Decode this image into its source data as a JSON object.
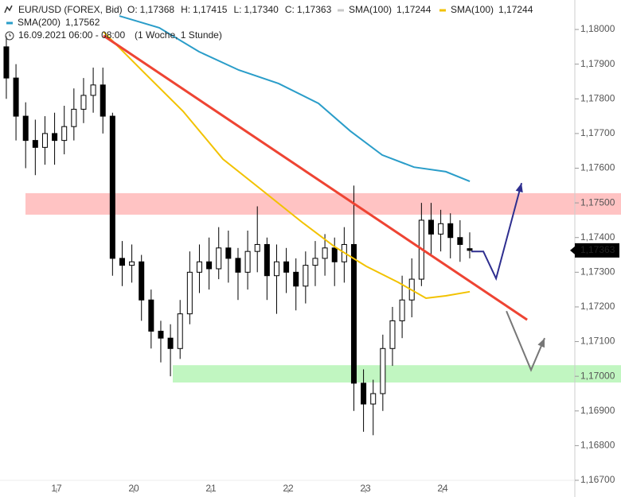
{
  "chart_data": {
    "type": "candlestick",
    "title": "EUR/USD (FOREX, Bid)",
    "ohlc_header": [
      {
        "key": "O:",
        "label": "1,17368"
      },
      {
        "key": "H:",
        "label": "1,17415"
      },
      {
        "key": "L:",
        "label": "1,17340"
      },
      {
        "key": "C:",
        "label": "1,17363"
      }
    ],
    "legend": [
      {
        "name": "SMA(100)",
        "color": "#c8c8c8",
        "label": "1,17244"
      },
      {
        "name": "SMA(100)",
        "color": "#f2c200",
        "label": "1,17244"
      },
      {
        "name": "SMA(200)",
        "color": "#2a9dc9",
        "label": "1,17562"
      }
    ],
    "date_range": "16.09.2021 06:00 - 08:00",
    "timeframe": "(1 Woche, 1 Stunde)",
    "last_price_label": "1,17363",
    "up_color": "#ffffff",
    "down_color": "#000000",
    "x": [
      -0.65,
      -0.525,
      -0.4,
      -0.275,
      -0.15,
      -0.025,
      0.1,
      0.225,
      0.35,
      0.475,
      0.6,
      0.725,
      0.85,
      0.975,
      1.1,
      1.225,
      1.35,
      1.475,
      1.6,
      1.725,
      1.85,
      1.975,
      2.1,
      2.225,
      2.35,
      2.475,
      2.6,
      2.725,
      2.85,
      2.975,
      3.1,
      3.225,
      3.35,
      3.475,
      3.6,
      3.725,
      3.85,
      3.975,
      4.1,
      4.225,
      4.35,
      4.475,
      4.6,
      4.725,
      4.85,
      4.975,
      5.1,
      5.225,
      5.35
    ],
    "open": [
      1.1795,
      1.1786,
      1.1775,
      1.1768,
      1.1766,
      1.177,
      1.1768,
      1.1772,
      1.1777,
      1.1781,
      1.1784,
      1.1775,
      1.1734,
      1.1732,
      1.1733,
      1.1722,
      1.1713,
      1.1711,
      1.1708,
      1.1718,
      1.173,
      1.1733,
      1.1731,
      1.1737,
      1.1734,
      1.173,
      1.1736,
      1.1738,
      1.1729,
      1.1733,
      1.173,
      1.1726,
      1.1732,
      1.1734,
      1.1737,
      1.1733,
      1.1738,
      1.1698,
      1.1692,
      1.1695,
      1.1708,
      1.1716,
      1.1722,
      1.1728,
      1.1745,
      1.1741,
      1.1744,
      1.174,
      1.17368
    ],
    "high": [
      1.1798,
      1.179,
      1.1779,
      1.1774,
      1.1775,
      1.1776,
      1.1778,
      1.1783,
      1.1786,
      1.1789,
      1.1789,
      1.1776,
      1.1739,
      1.1738,
      1.1735,
      1.1725,
      1.1716,
      1.1715,
      1.1722,
      1.1736,
      1.1738,
      1.174,
      1.1743,
      1.1742,
      1.1737,
      1.1742,
      1.1749,
      1.174,
      1.1738,
      1.1737,
      1.1734,
      1.1736,
      1.1739,
      1.1741,
      1.174,
      1.1743,
      1.1755,
      1.1702,
      1.1699,
      1.1712,
      1.172,
      1.1729,
      1.1734,
      1.175,
      1.175,
      1.1748,
      1.1747,
      1.1745,
      1.17415
    ],
    "low": [
      1.178,
      1.1768,
      1.176,
      1.1758,
      1.1761,
      1.1761,
      1.1764,
      1.1768,
      1.1773,
      1.1776,
      1.177,
      1.1729,
      1.1726,
      1.1727,
      1.1716,
      1.1708,
      1.1704,
      1.17,
      1.1705,
      1.1715,
      1.1724,
      1.1725,
      1.1728,
      1.1727,
      1.1722,
      1.1725,
      1.173,
      1.1722,
      1.1718,
      1.1724,
      1.1719,
      1.1721,
      1.1726,
      1.1729,
      1.1726,
      1.1727,
      1.169,
      1.1684,
      1.1683,
      1.169,
      1.1703,
      1.1711,
      1.1717,
      1.1726,
      1.1735,
      1.1736,
      1.1734,
      1.1733,
      1.1734
    ],
    "close": [
      1.1786,
      1.1775,
      1.1768,
      1.1766,
      1.177,
      1.1768,
      1.1772,
      1.1777,
      1.1781,
      1.1784,
      1.1775,
      1.1734,
      1.1732,
      1.1733,
      1.1722,
      1.1713,
      1.1711,
      1.1708,
      1.1718,
      1.173,
      1.1733,
      1.1731,
      1.1737,
      1.1734,
      1.173,
      1.1736,
      1.1738,
      1.1729,
      1.1733,
      1.173,
      1.1726,
      1.1732,
      1.1734,
      1.1737,
      1.1733,
      1.1738,
      1.1698,
      1.1692,
      1.1695,
      1.1708,
      1.1716,
      1.1722,
      1.1728,
      1.1745,
      1.1741,
      1.1744,
      1.174,
      1.1738,
      1.17363
    ],
    "lines": [
      {
        "color": "#2a9dc9",
        "x": [
          0.814,
          1.33,
          1.845,
          2.361,
          2.876,
          3.392,
          3.804,
          4.216,
          4.629,
          5.041,
          5.351
        ],
        "values": [
          1.18039,
          1.18005,
          1.17936,
          1.17883,
          1.17844,
          1.17787,
          1.17707,
          1.17638,
          1.17603,
          1.1759,
          1.17562
        ]
      },
      {
        "color": "#f2c200",
        "x": [
          0.608,
          1.124,
          1.639,
          2.155,
          2.67,
          3.186,
          3.598,
          4.01,
          4.423,
          4.784,
          5.041,
          5.351
        ],
        "values": [
          1.17993,
          1.17878,
          1.17764,
          1.17626,
          1.17535,
          1.17443,
          1.17374,
          1.17317,
          1.17271,
          1.17225,
          1.17232,
          1.17244
        ]
      },
      {
        "color": "#ee4433",
        "x": [
          0.608,
          6.093
        ],
        "values": [
          1.17982,
          1.17163
        ]
      },
      {
        "color": "#2e2e8f",
        "x": [
          5.371,
          5.526,
          5.691,
          6.021
        ],
        "values": [
          1.1736,
          1.1736,
          1.17282,
          1.17557
        ]
      },
      {
        "color": "#777777",
        "x": [
          5.825,
          6.144,
          6.32
        ],
        "values": [
          1.17188,
          1.17018,
          1.1711
        ]
      }
    ],
    "zones": [
      {
        "color": "#ffb8b8",
        "x_from": -0.402,
        "bounds": [
          1.17466,
          1.17528
        ]
      },
      {
        "color": "#b6f5b6",
        "x_from": 1.505,
        "bounds": [
          1.16982,
          1.17032
        ]
      }
    ],
    "xlim": [
      -0.732,
      6.711
    ],
    "xticks": [
      {
        "value": 0,
        "label": "17"
      },
      {
        "value": 1,
        "label": "20"
      },
      {
        "value": 2,
        "label": "21"
      },
      {
        "value": 3,
        "label": "22"
      },
      {
        "value": 4,
        "label": "23"
      },
      {
        "value": 5,
        "label": "24"
      }
    ],
    "ylim": [
      1.167,
      1.18085
    ],
    "yticks": [
      {
        "value": 1.18,
        "label": "1,18000"
      },
      {
        "value": 1.179,
        "label": "1,17900"
      },
      {
        "value": 1.178,
        "label": "1,17800"
      },
      {
        "value": 1.177,
        "label": "1,17700"
      },
      {
        "value": 1.176,
        "label": "1,17600"
      },
      {
        "value": 1.175,
        "label": "1,17500"
      },
      {
        "value": 1.174,
        "label": "1,17400"
      },
      {
        "value": 1.173,
        "label": "1,17300"
      },
      {
        "value": 1.172,
        "label": "1,17200"
      },
      {
        "value": 1.171,
        "label": "1,17100"
      },
      {
        "value": 1.17,
        "label": "1,17000"
      },
      {
        "value": 1.169,
        "label": "1,16900"
      },
      {
        "value": 1.168,
        "label": "1,16800"
      },
      {
        "value": 1.167,
        "label": "1,16700"
      }
    ]
  }
}
